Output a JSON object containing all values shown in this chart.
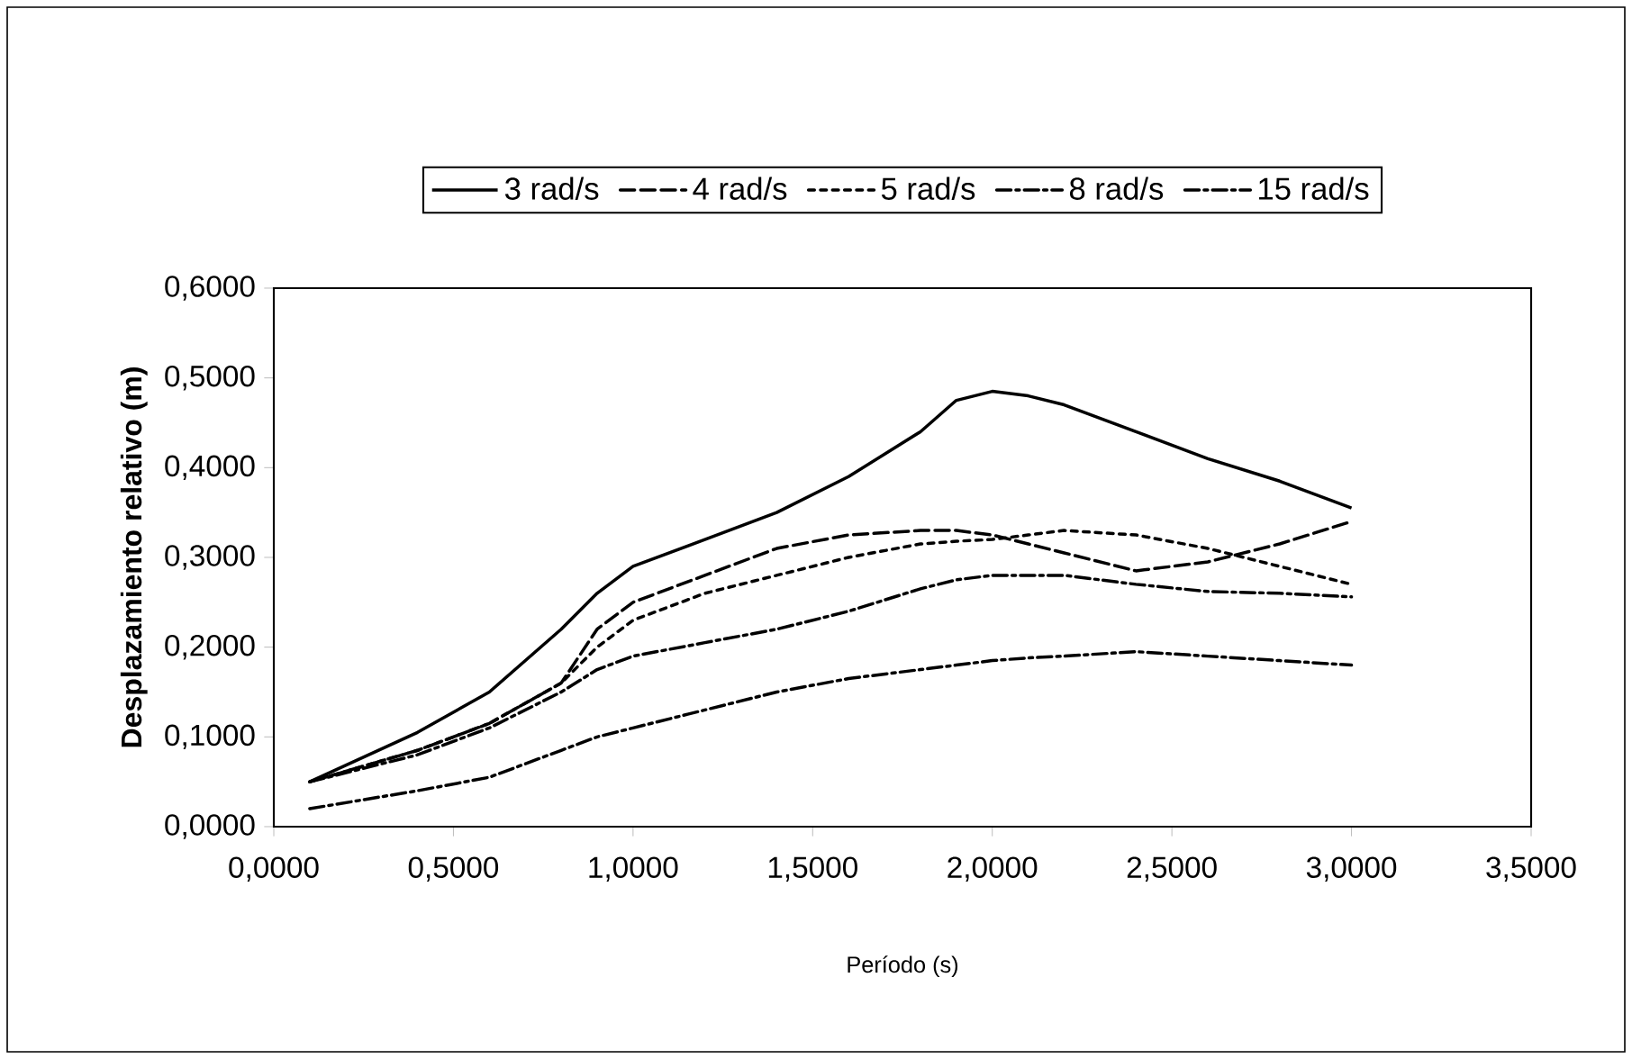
{
  "chart_data": {
    "type": "line",
    "xlabel": "Período (s)",
    "ylabel": "Desplazamiento relativo (m)",
    "xlim": [
      0,
      3.5
    ],
    "ylim": [
      0,
      0.6
    ],
    "xticks": [
      {
        "value": 0,
        "label": "0,0000"
      },
      {
        "value": 0.5,
        "label": "0,5000"
      },
      {
        "value": 1,
        "label": "1,0000"
      },
      {
        "value": 1.5,
        "label": "1,5000"
      },
      {
        "value": 2,
        "label": "2,0000"
      },
      {
        "value": 2.5,
        "label": "2,5000"
      },
      {
        "value": 3,
        "label": "3,0000"
      },
      {
        "value": 3.5,
        "label": "3,5000"
      }
    ],
    "yticks": [
      {
        "value": 0,
        "label": "0,0000"
      },
      {
        "value": 0.1,
        "label": "0,1000"
      },
      {
        "value": 0.2,
        "label": "0,2000"
      },
      {
        "value": 0.3,
        "label": "0,3000"
      },
      {
        "value": 0.4,
        "label": "0,4000"
      },
      {
        "value": 0.5,
        "label": "0,5000"
      },
      {
        "value": 0.6,
        "label": "0,6000"
      }
    ],
    "x": [
      0.1,
      0.4,
      0.6,
      0.8,
      0.9,
      1.0,
      1.2,
      1.4,
      1.6,
      1.8,
      1.9,
      2.0,
      2.1,
      2.2,
      2.4,
      2.6,
      2.8,
      3.0
    ],
    "series": [
      {
        "name": "3 rad/s",
        "color": "#000000",
        "line_style": "solid",
        "values": [
          0.05,
          0.105,
          0.15,
          0.22,
          0.26,
          0.29,
          0.32,
          0.35,
          0.39,
          0.44,
          0.475,
          0.485,
          0.48,
          0.47,
          0.44,
          0.41,
          0.385,
          0.355
        ]
      },
      {
        "name": "4 rad/s",
        "color": "#000000",
        "line_style": "dashed",
        "values": [
          0.05,
          0.085,
          0.115,
          0.16,
          0.22,
          0.25,
          0.28,
          0.31,
          0.325,
          0.33,
          0.33,
          0.325,
          0.315,
          0.305,
          0.285,
          0.295,
          0.315,
          0.34
        ]
      },
      {
        "name": "5 rad/s",
        "color": "#000000",
        "line_style": "dotted",
        "values": [
          0.05,
          0.085,
          0.115,
          0.16,
          0.2,
          0.23,
          0.26,
          0.28,
          0.3,
          0.315,
          0.318,
          0.32,
          0.325,
          0.33,
          0.325,
          0.31,
          0.29,
          0.27
        ]
      },
      {
        "name": "8 rad/s",
        "color": "#000000",
        "line_style": "dashdot",
        "values": [
          0.05,
          0.08,
          0.11,
          0.15,
          0.175,
          0.19,
          0.205,
          0.22,
          0.24,
          0.265,
          0.275,
          0.28,
          0.28,
          0.28,
          0.27,
          0.262,
          0.26,
          0.256
        ]
      },
      {
        "name": "15 rad/s",
        "color": "#000000",
        "line_style": "dashdot",
        "values": [
          0.02,
          0.04,
          0.055,
          0.085,
          0.1,
          0.11,
          0.13,
          0.15,
          0.165,
          0.175,
          0.18,
          0.185,
          0.188,
          0.19,
          0.195,
          0.19,
          0.185,
          0.18
        ]
      }
    ],
    "legend": "top",
    "marker": "none",
    "grid": false
  }
}
